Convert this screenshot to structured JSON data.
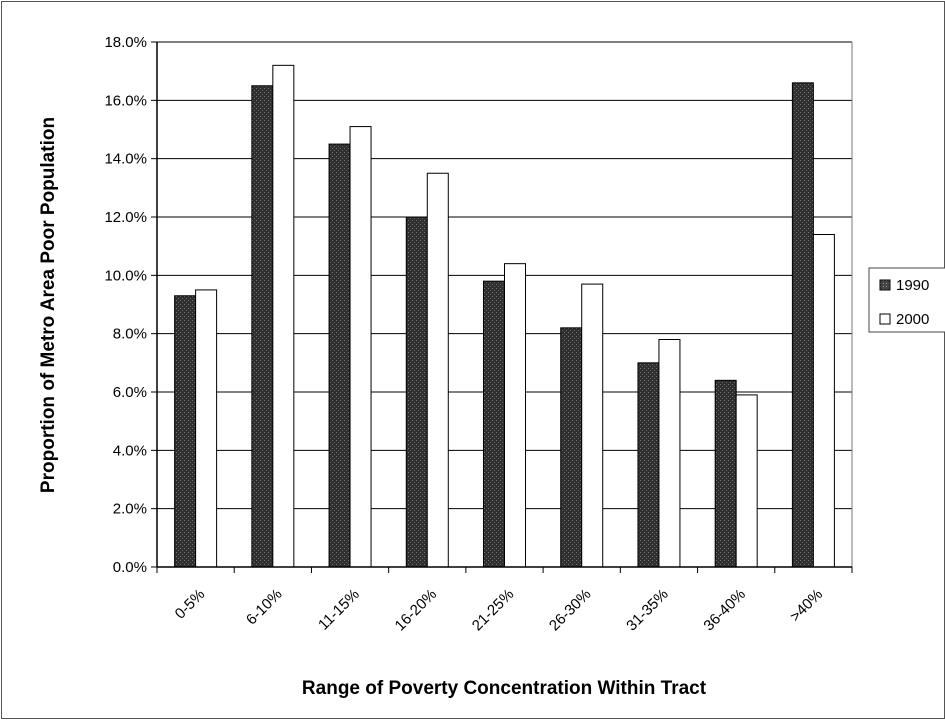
{
  "chart_data": {
    "type": "bar",
    "title": "",
    "xlabel": "Range of Poverty Concentration Within Tract",
    "ylabel": "Proportion of Metro Area Poor Population",
    "categories": [
      "0-5%",
      "6-10%",
      "11-15%",
      "16-20%",
      "21-25%",
      "26-30%",
      "31-35%",
      "36-40%",
      ">40%"
    ],
    "series": [
      {
        "name": "1990",
        "values": [
          9.3,
          16.5,
          14.5,
          12.0,
          9.8,
          8.2,
          7.0,
          6.4,
          16.6
        ]
      },
      {
        "name": "2000",
        "values": [
          9.5,
          17.2,
          15.1,
          13.5,
          10.4,
          9.7,
          7.8,
          5.9,
          11.4
        ]
      }
    ],
    "ylim": [
      0,
      18
    ],
    "yticks": [
      "0.0%",
      "2.0%",
      "4.0%",
      "6.0%",
      "8.0%",
      "10.0%",
      "12.0%",
      "14.0%",
      "16.0%",
      "18.0%"
    ],
    "grid": true,
    "legend": "right",
    "colors": {
      "1990": "#3a3a3a",
      "2000": "#ffffff"
    }
  }
}
